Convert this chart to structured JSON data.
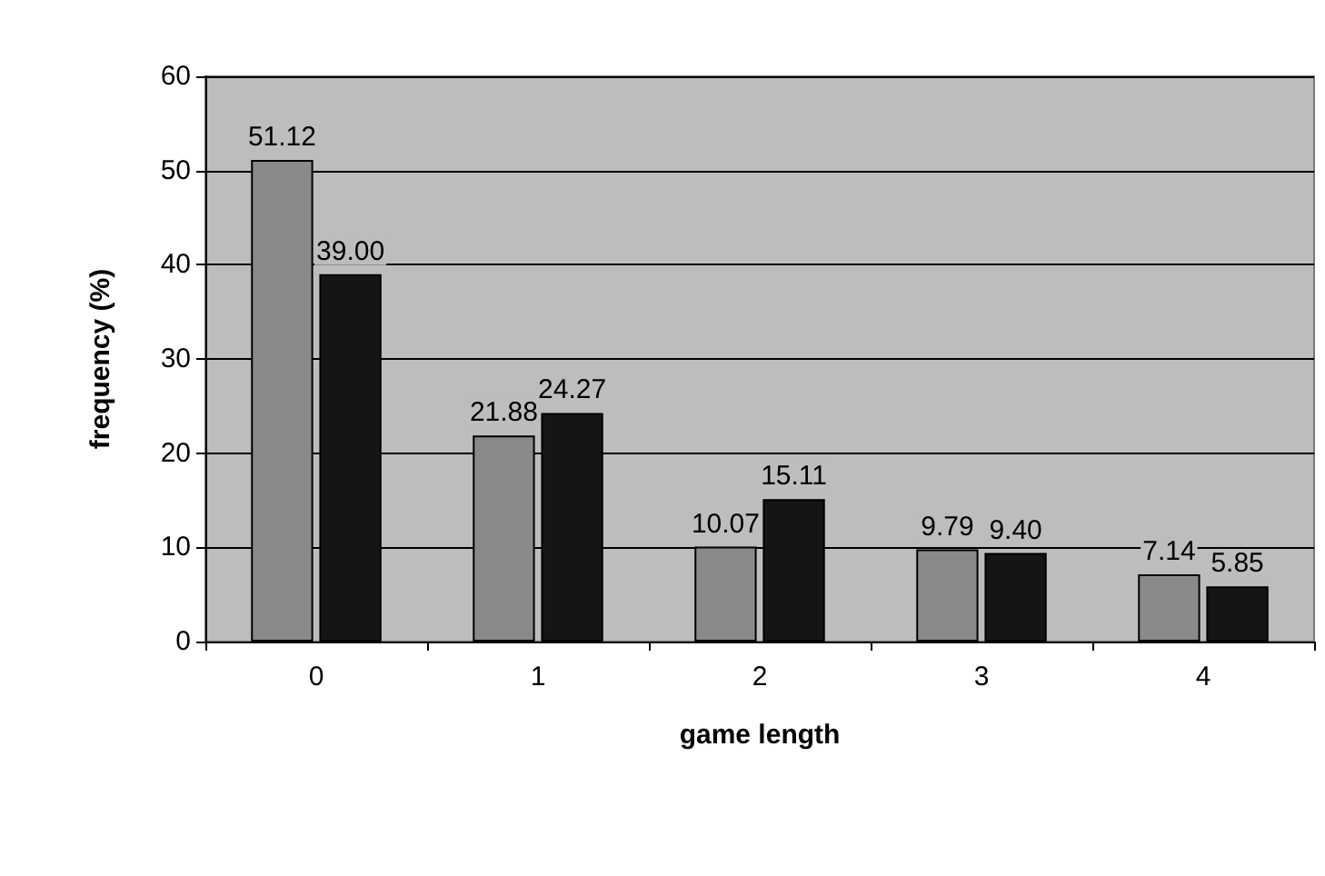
{
  "chart_data": {
    "type": "bar",
    "xlabel": "game length",
    "ylabel": "frequency (%)",
    "categories": [
      "0",
      "1",
      "2",
      "3",
      "4"
    ],
    "series": [
      {
        "color": "#8a8a8a",
        "values": [
          51.12,
          21.88,
          10.07,
          9.79,
          7.14
        ],
        "value_labels": [
          "51.12",
          "21.88",
          "10.07",
          "9.79",
          "7.14"
        ]
      },
      {
        "color": "#151515",
        "values": [
          39.0,
          24.27,
          15.11,
          9.4,
          5.85
        ],
        "value_labels": [
          "39.00",
          "24.27",
          "15.11",
          "9.40",
          "5.85"
        ]
      }
    ],
    "ylim": [
      0,
      60
    ],
    "yticks": [
      0,
      10,
      20,
      30,
      40,
      50,
      60
    ],
    "grid": "y"
  }
}
